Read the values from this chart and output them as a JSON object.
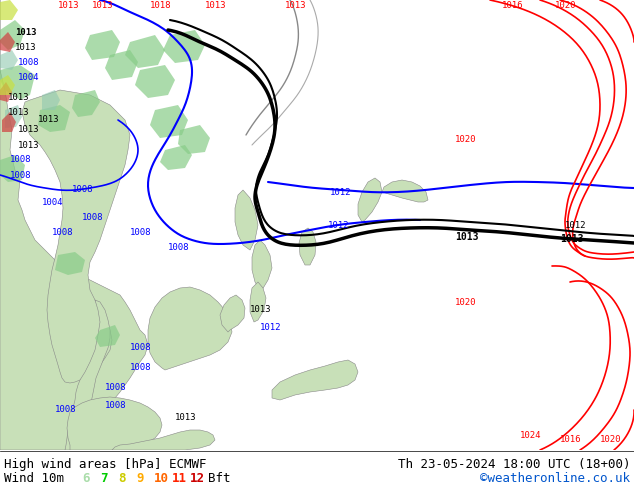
{
  "title_left": "High wind areas [hPa] ECMWF",
  "title_right": "Th 23-05-2024 18:00 UTC (18+00)",
  "legend_label": "Wind 10m",
  "legend_numbers": [
    "6",
    "7",
    "8",
    "9",
    "10",
    "11",
    "12"
  ],
  "legend_colors": [
    "#aaddaa",
    "#00cc00",
    "#cccc00",
    "#ffaa00",
    "#ff6600",
    "#ff2200",
    "#cc0000"
  ],
  "legend_suffix": "Bft",
  "credit": "©weatheronline.co.uk",
  "credit_color": "#0055cc",
  "bg_color": "#ffffff",
  "text_color": "#000000",
  "font_size": 9,
  "fig_width": 6.34,
  "fig_height": 4.9,
  "dpi": 100,
  "sea_color": "#f4f8f4",
  "land_color": "#c8e0b8",
  "land_dark": "#a8c898",
  "land_teal": "#90c8b0",
  "highlight_yellow": "#e8f060",
  "highlight_red": "#d04040",
  "map_white": "#f8f8f8"
}
